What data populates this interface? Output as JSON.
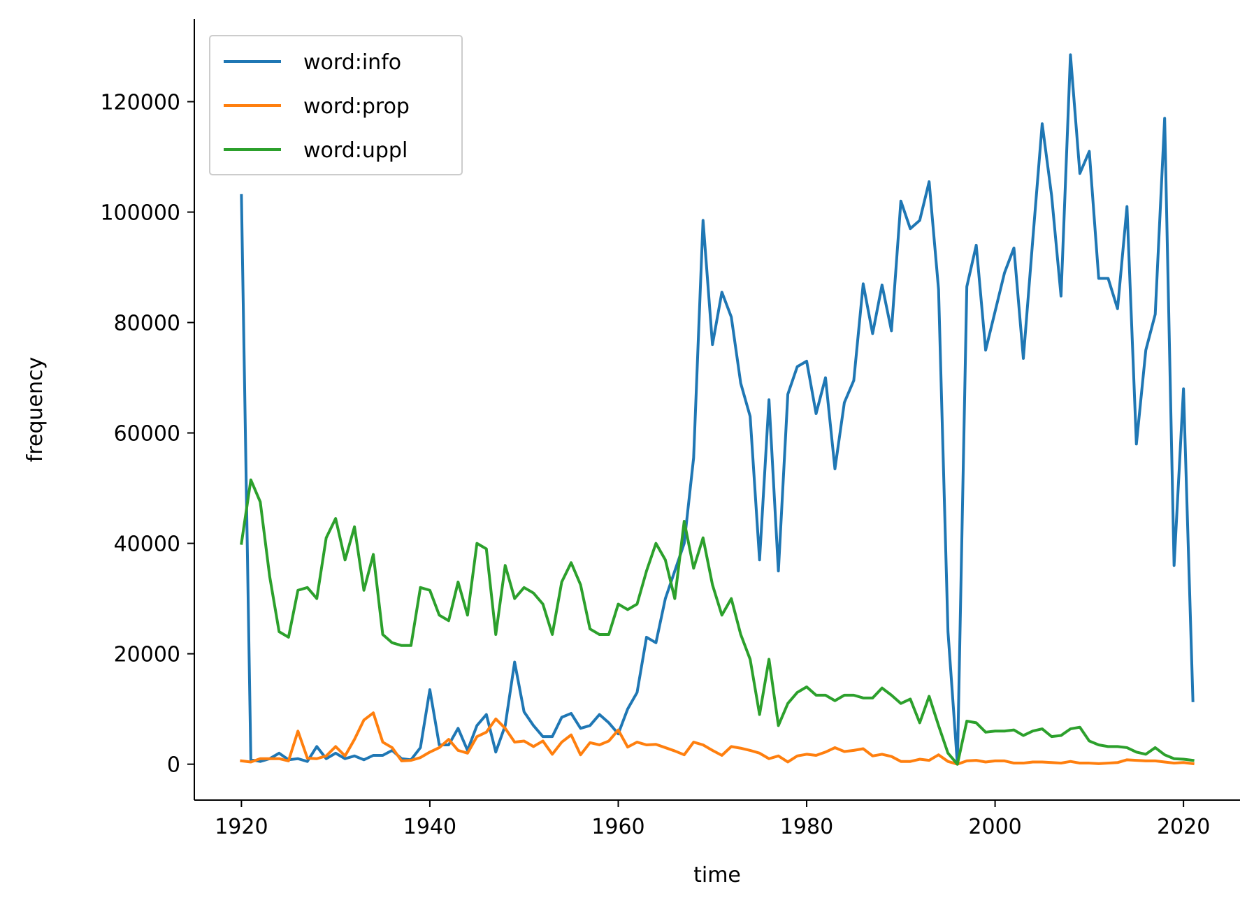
{
  "chart_data": {
    "type": "line",
    "title": "",
    "xlabel": "time",
    "ylabel": "frequency",
    "xlim": [
      1915,
      2026
    ],
    "ylim": [
      -6500,
      135000
    ],
    "x_ticks": [
      1920,
      1940,
      1960,
      1980,
      2000,
      2020
    ],
    "y_ticks": [
      0,
      20000,
      40000,
      60000,
      80000,
      100000,
      120000
    ],
    "grid": false,
    "legend_position": "top-left",
    "x": [
      1920,
      1921,
      1922,
      1923,
      1924,
      1925,
      1926,
      1927,
      1928,
      1929,
      1930,
      1931,
      1932,
      1933,
      1934,
      1935,
      1936,
      1937,
      1938,
      1939,
      1940,
      1941,
      1942,
      1943,
      1944,
      1945,
      1946,
      1947,
      1948,
      1949,
      1950,
      1951,
      1952,
      1953,
      1954,
      1955,
      1956,
      1957,
      1958,
      1959,
      1960,
      1961,
      1962,
      1963,
      1964,
      1965,
      1966,
      1967,
      1968,
      1969,
      1970,
      1971,
      1972,
      1973,
      1974,
      1975,
      1976,
      1977,
      1978,
      1979,
      1980,
      1981,
      1982,
      1983,
      1984,
      1985,
      1986,
      1987,
      1988,
      1989,
      1990,
      1991,
      1992,
      1993,
      1994,
      1995,
      1996,
      1997,
      1998,
      1999,
      2000,
      2001,
      2002,
      2003,
      2004,
      2005,
      2006,
      2007,
      2008,
      2009,
      2010,
      2011,
      2012,
      2013,
      2014,
      2015,
      2016,
      2017,
      2018,
      2019,
      2020,
      2021
    ],
    "series": [
      {
        "name": "word:info",
        "color": "#1f77b4",
        "values": [
          103000,
          800,
          500,
          1000,
          2000,
          800,
          1000,
          500,
          3200,
          1000,
          2000,
          1000,
          1500,
          800,
          1600,
          1600,
          2500,
          1000,
          800,
          3000,
          13500,
          3500,
          3500,
          6500,
          2500,
          7000,
          9000,
          2200,
          7000,
          18500,
          9500,
          7000,
          5000,
          5000,
          8500,
          9200,
          6500,
          7000,
          9000,
          7500,
          5500,
          10000,
          13000,
          23000,
          22000,
          30000,
          35000,
          40000,
          55500,
          98500,
          76000,
          85500,
          81000,
          69000,
          63000,
          37000,
          66000,
          35000,
          67000,
          72000,
          73000,
          63500,
          70000,
          53500,
          65500,
          69500,
          87000,
          78000,
          86800,
          78500,
          102000,
          97000,
          98500,
          105500,
          86000,
          24000,
          0,
          86500,
          94000,
          75000,
          82000,
          89000,
          93500,
          73500,
          95000,
          116000,
          103000,
          84800,
          128500,
          107000,
          111000,
          88000,
          88000,
          82500,
          101000,
          58000,
          75000,
          81500,
          117000,
          36000,
          68000,
          11500
        ]
      },
      {
        "name": "word:prop",
        "color": "#ff7f0e",
        "values": [
          600,
          400,
          1000,
          1000,
          1000,
          600,
          6000,
          1100,
          1000,
          1500,
          3200,
          1500,
          4500,
          8000,
          9300,
          4000,
          3000,
          600,
          700,
          1200,
          2200,
          3000,
          4500,
          2500,
          2000,
          5000,
          5800,
          8200,
          6500,
          4000,
          4200,
          3200,
          4200,
          1800,
          4000,
          5300,
          1700,
          3900,
          3500,
          4200,
          6200,
          3100,
          4000,
          3500,
          3600,
          3000,
          2400,
          1700,
          4000,
          3500,
          2500,
          1600,
          3200,
          2900,
          2500,
          2000,
          1000,
          1500,
          400,
          1500,
          1800,
          1600,
          2200,
          3000,
          2300,
          2500,
          2800,
          1500,
          1800,
          1400,
          500,
          500,
          900,
          700,
          1700,
          500,
          0,
          600,
          700,
          400,
          600,
          600,
          200,
          200,
          400,
          400,
          300,
          200,
          500,
          200,
          200,
          100,
          200,
          300,
          800,
          700,
          600,
          600,
          400,
          200,
          300,
          100
        ]
      },
      {
        "name": "word:uppl",
        "color": "#2ca02c",
        "values": [
          40000,
          51500,
          47500,
          34000,
          24000,
          23000,
          31500,
          32000,
          30000,
          41000,
          44500,
          37000,
          43000,
          31500,
          38000,
          23500,
          22000,
          21500,
          21500,
          32000,
          31500,
          27000,
          26000,
          33000,
          27000,
          40000,
          39000,
          23500,
          36000,
          30000,
          32000,
          31000,
          29000,
          23500,
          33000,
          36500,
          32500,
          24500,
          23500,
          23500,
          29000,
          28000,
          29000,
          35000,
          40000,
          37000,
          30000,
          44000,
          35500,
          41000,
          32500,
          27000,
          30000,
          23500,
          19000,
          9000,
          19000,
          7000,
          11000,
          13000,
          14000,
          12500,
          12500,
          11500,
          12500,
          12500,
          12000,
          12000,
          13800,
          12500,
          11000,
          11800,
          7500,
          12300,
          7000,
          2000,
          0,
          7800,
          7500,
          5800,
          6000,
          6000,
          6200,
          5200,
          6000,
          6400,
          5000,
          5200,
          6400,
          6700,
          4200,
          3500,
          3200,
          3200,
          3000,
          2200,
          1800,
          3000,
          1700,
          1000,
          900,
          700
        ]
      }
    ]
  }
}
